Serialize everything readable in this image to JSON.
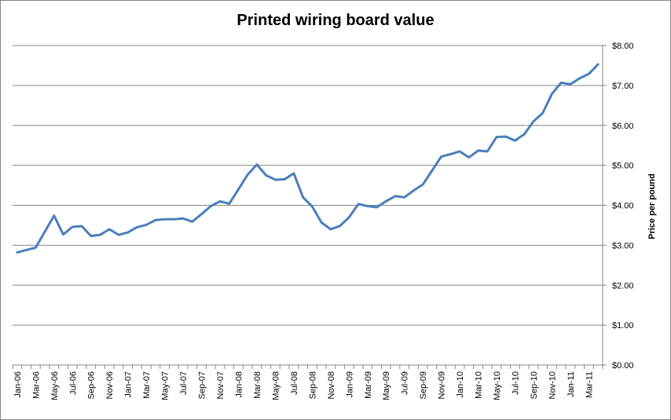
{
  "chart_data": {
    "type": "line",
    "title": "Printed wiring board value",
    "ylabel": "Price per pound",
    "xlabel": "",
    "ylim": [
      0,
      8
    ],
    "ytick_labels": [
      "$0.00",
      "$1.00",
      "$2.00",
      "$3.00",
      "$4.00",
      "$5.00",
      "$6.00",
      "$7.00",
      "$8.00"
    ],
    "grid": "horizontal",
    "line_color": "#4a7ebb",
    "categories": [
      "Jan-06",
      "Feb-06",
      "Mar-06",
      "Apr-06",
      "May-06",
      "Jun-06",
      "Jul-06",
      "Aug-06",
      "Sep-06",
      "Oct-06",
      "Nov-06",
      "Dec-06",
      "Jan-07",
      "Feb-07",
      "Mar-07",
      "Apr-07",
      "May-07",
      "Jun-07",
      "Jul-07",
      "Aug-07",
      "Sep-07",
      "Oct-07",
      "Nov-07",
      "Dec-07",
      "Jan-08",
      "Feb-08",
      "Mar-08",
      "Apr-08",
      "May-08",
      "Jun-08",
      "Jul-08",
      "Aug-08",
      "Sep-08",
      "Oct-08",
      "Nov-08",
      "Dec-08",
      "Jan-09",
      "Feb-09",
      "Mar-09",
      "Apr-09",
      "May-09",
      "Jun-09",
      "Jul-09",
      "Aug-09",
      "Sep-09",
      "Oct-09",
      "Nov-09",
      "Dec-09",
      "Jan-10",
      "Feb-10",
      "Mar-10",
      "Apr-10",
      "May-10",
      "Jun-10",
      "Jul-10",
      "Aug-10",
      "Sep-10",
      "Oct-10",
      "Nov-10",
      "Dec-10",
      "Jan-11",
      "Feb-11",
      "Mar-11",
      "Apr-11"
    ],
    "xtick_labels": [
      "Jan-06",
      "Mar-06",
      "May-06",
      "Jul-06",
      "Sep-06",
      "Nov-06",
      "Jan-07",
      "Mar-07",
      "May-07",
      "Jul-07",
      "Sep-07",
      "Nov-07",
      "Jan-08",
      "Mar-08",
      "May-08",
      "Jul-08",
      "Sep-08",
      "Nov-08",
      "Jan-09",
      "Mar-09",
      "May-09",
      "Jul-09",
      "Sep-09",
      "Nov-09",
      "Jan-10",
      "Mar-10",
      "May-10",
      "Jul-10",
      "Sep-10",
      "Nov-10",
      "Jan-11",
      "Mar-11"
    ],
    "series": [
      {
        "values": [
          2.82,
          2.88,
          2.94,
          3.34,
          3.74,
          3.27,
          3.46,
          3.48,
          3.23,
          3.26,
          3.4,
          3.26,
          3.32,
          3.45,
          3.51,
          3.63,
          3.65,
          3.65,
          3.67,
          3.59,
          3.78,
          3.98,
          4.1,
          4.04,
          4.4,
          4.77,
          5.02,
          4.75,
          4.64,
          4.65,
          4.8,
          4.2,
          3.97,
          3.57,
          3.4,
          3.48,
          3.7,
          4.03,
          3.98,
          3.95,
          4.1,
          4.23,
          4.2,
          4.37,
          4.52,
          4.87,
          5.22,
          5.28,
          5.35,
          5.2,
          5.37,
          5.35,
          5.71,
          5.72,
          5.62,
          5.78,
          6.1,
          6.31,
          6.79,
          7.07,
          7.03,
          7.18,
          7.29,
          7.53
        ]
      }
    ]
  }
}
